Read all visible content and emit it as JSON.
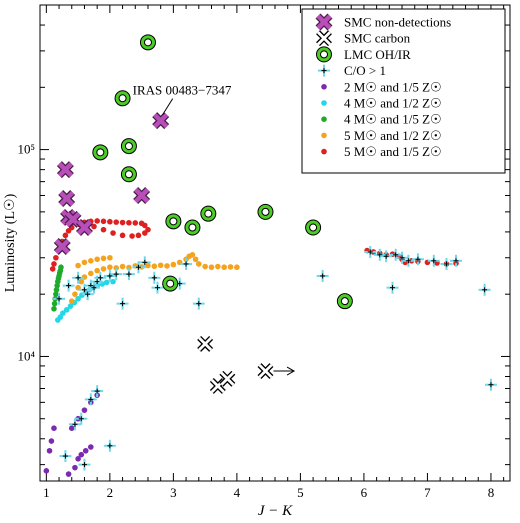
{
  "chart_data": {
    "type": "scatter",
    "xlabel": "J − K",
    "ylabel": "Luminosity (L☉)",
    "xlim": [
      0.9,
      8.3
    ],
    "ylim": [
      2500,
      500000
    ],
    "y_scale": "log",
    "grid": false,
    "legend_position": "top-right",
    "x_ticks": [
      "1",
      "2",
      "3",
      "4",
      "5",
      "6",
      "7",
      "8"
    ],
    "y_ticks": [
      {
        "value": 10000,
        "label": "10⁴"
      },
      {
        "value": 100000,
        "label": "10⁵"
      }
    ],
    "annotation": {
      "text": "IRAS 00483−7347",
      "x": 2.8,
      "y": 138000
    },
    "arrow": {
      "from": [
        4.45,
        8500
      ],
      "to": [
        4.9,
        8500
      ]
    },
    "series": [
      {
        "name": "SMC non-detections",
        "marker": "x-thick",
        "color": "#b84fb8",
        "edge": "#4a1c4a",
        "points": [
          [
            1.3,
            80000
          ],
          [
            1.32,
            58000
          ],
          [
            1.35,
            47000
          ],
          [
            1.42,
            46000
          ],
          [
            1.25,
            34000
          ],
          [
            1.6,
            42000
          ],
          [
            2.5,
            60000
          ],
          [
            2.8,
            138000
          ]
        ]
      },
      {
        "name": "SMC carbon",
        "marker": "x-open",
        "color": "#000000",
        "points": [
          [
            3.5,
            11500
          ],
          [
            3.7,
            7200
          ],
          [
            3.85,
            7800
          ],
          [
            4.45,
            8500
          ]
        ]
      },
      {
        "name": "LMC OH/IR",
        "marker": "target",
        "color": "#4dcc28",
        "points": [
          [
            2.6,
            330000
          ],
          [
            2.2,
            177000
          ],
          [
            2.3,
            104000
          ],
          [
            1.85,
            97000
          ],
          [
            2.3,
            76000
          ],
          [
            3.0,
            45000
          ],
          [
            3.3,
            42000
          ],
          [
            3.55,
            49000
          ],
          [
            4.45,
            50000
          ],
          [
            5.2,
            42000
          ],
          [
            2.95,
            22500
          ],
          [
            5.7,
            18500
          ]
        ]
      },
      {
        "name": "C/O > 1",
        "marker": "plus",
        "color": "#6ed8ea",
        "points": [
          [
            1.2,
            19000
          ],
          [
            1.35,
            22000
          ],
          [
            1.5,
            24000
          ],
          [
            1.6,
            21000
          ],
          [
            1.65,
            20000
          ],
          [
            1.7,
            22000
          ],
          [
            1.75,
            21500
          ],
          [
            1.8,
            23000
          ],
          [
            1.85,
            24000
          ],
          [
            2.0,
            24500
          ],
          [
            2.1,
            25000
          ],
          [
            2.2,
            18000
          ],
          [
            2.3,
            25000
          ],
          [
            2.45,
            27000
          ],
          [
            2.55,
            28500
          ],
          [
            2.7,
            24000
          ],
          [
            2.75,
            21500
          ],
          [
            3.1,
            22500
          ],
          [
            3.2,
            28000
          ],
          [
            3.4,
            18000
          ],
          [
            5.35,
            24500
          ],
          [
            6.45,
            21500
          ],
          [
            7.9,
            21000
          ],
          [
            1.45,
            4700
          ],
          [
            1.55,
            5000
          ],
          [
            1.3,
            3300
          ],
          [
            1.7,
            6200
          ],
          [
            1.8,
            6800
          ],
          [
            2.0,
            3700
          ],
          [
            1.6,
            3000
          ],
          [
            8.0,
            7300
          ],
          [
            6.1,
            32000
          ],
          [
            6.25,
            31000
          ],
          [
            6.35,
            30500
          ],
          [
            6.5,
            31000
          ],
          [
            6.6,
            30000
          ],
          [
            6.7,
            29000
          ],
          [
            6.85,
            29500
          ],
          [
            7.1,
            29000
          ],
          [
            7.3,
            28000
          ],
          [
            7.45,
            29000
          ]
        ]
      },
      {
        "name": "2 M☉ and 1/5 Z☉",
        "marker": "dot",
        "color": "#7a2bb0",
        "points": [
          [
            1.0,
            2800
          ],
          [
            1.05,
            3500
          ],
          [
            1.08,
            3900
          ],
          [
            1.12,
            4500
          ],
          [
            1.35,
            2700
          ],
          [
            1.45,
            2900
          ],
          [
            1.5,
            3200
          ],
          [
            1.55,
            3350
          ],
          [
            1.62,
            3500
          ],
          [
            1.7,
            3650
          ],
          [
            1.4,
            4500
          ],
          [
            1.5,
            5000
          ],
          [
            1.6,
            5500
          ],
          [
            1.7,
            6000
          ],
          [
            1.8,
            6500
          ]
        ]
      },
      {
        "name": "4 M☉ and 1/2 Z☉",
        "marker": "dot",
        "color": "#20d8e8",
        "points": [
          [
            1.18,
            15000
          ],
          [
            1.22,
            15500
          ],
          [
            1.26,
            16200
          ],
          [
            1.32,
            16800
          ],
          [
            1.38,
            17500
          ],
          [
            1.44,
            18200
          ],
          [
            1.5,
            19000
          ],
          [
            1.56,
            19800
          ],
          [
            1.62,
            20500
          ],
          [
            1.68,
            21000
          ],
          [
            1.74,
            21500
          ],
          [
            1.8,
            22000
          ],
          [
            1.88,
            22400
          ],
          [
            1.95,
            22800
          ],
          [
            2.05,
            23000
          ]
        ]
      },
      {
        "name": "4 M☉ and 1/5 Z☉",
        "marker": "dot",
        "color": "#1faa2a",
        "points": [
          [
            1.12,
            17000
          ],
          [
            1.13,
            18000
          ],
          [
            1.14,
            19000
          ],
          [
            1.15,
            20000
          ],
          [
            1.16,
            21000
          ],
          [
            1.17,
            22000
          ],
          [
            1.18,
            23000
          ],
          [
            1.19,
            23800
          ],
          [
            1.2,
            24500
          ],
          [
            1.21,
            25300
          ],
          [
            1.22,
            26000
          ],
          [
            1.23,
            27000
          ]
        ]
      },
      {
        "name": "5 M☉ and 1/2 Z☉",
        "marker": "dot",
        "color": "#f5a21c",
        "points": [
          [
            1.4,
            18500
          ],
          [
            1.45,
            20000
          ],
          [
            1.5,
            21500
          ],
          [
            1.55,
            23000
          ],
          [
            1.6,
            24200
          ],
          [
            1.7,
            25200
          ],
          [
            1.8,
            26000
          ],
          [
            1.9,
            26500
          ],
          [
            2.0,
            27000
          ],
          [
            2.1,
            26800
          ],
          [
            2.2,
            27200
          ],
          [
            2.3,
            26900
          ],
          [
            2.4,
            27400
          ],
          [
            2.5,
            27100
          ],
          [
            2.6,
            27500
          ],
          [
            2.7,
            27300
          ],
          [
            2.8,
            27600
          ],
          [
            2.9,
            27400
          ],
          [
            3.0,
            27800
          ],
          [
            3.1,
            28500
          ],
          [
            3.2,
            29500
          ],
          [
            3.25,
            30500
          ],
          [
            3.3,
            31000
          ],
          [
            3.35,
            29500
          ],
          [
            3.4,
            28000
          ],
          [
            3.5,
            27200
          ],
          [
            3.6,
            27000
          ],
          [
            3.7,
            27200
          ],
          [
            3.8,
            27000
          ],
          [
            3.9,
            27100
          ],
          [
            4.0,
            27000
          ],
          [
            1.5,
            27500
          ],
          [
            1.6,
            28500
          ],
          [
            1.7,
            29000
          ],
          [
            1.8,
            29500
          ],
          [
            1.9,
            29800
          ],
          [
            2.0,
            30000
          ]
        ]
      },
      {
        "name": "5 M☉ and 1/5 Z☉",
        "marker": "dot",
        "color": "#e02020",
        "points": [
          [
            1.15,
            30000
          ],
          [
            1.2,
            33000
          ],
          [
            1.25,
            36000
          ],
          [
            1.3,
            38500
          ],
          [
            1.35,
            40500
          ],
          [
            1.4,
            42000
          ],
          [
            1.5,
            43500
          ],
          [
            1.6,
            44500
          ],
          [
            1.7,
            45000
          ],
          [
            1.8,
            45200
          ],
          [
            1.9,
            45000
          ],
          [
            2.0,
            44800
          ],
          [
            2.1,
            44600
          ],
          [
            2.2,
            44400
          ],
          [
            2.3,
            44300
          ],
          [
            2.4,
            44200
          ],
          [
            2.5,
            44000
          ],
          [
            2.55,
            43000
          ],
          [
            2.6,
            41000
          ],
          [
            2.55,
            39500
          ],
          [
            2.45,
            38500
          ],
          [
            2.35,
            38200
          ],
          [
            2.2,
            38500
          ],
          [
            2.05,
            39500
          ],
          [
            1.9,
            41000
          ],
          [
            1.75,
            42500
          ],
          [
            1.1,
            26500
          ],
          [
            1.12,
            28000
          ],
          [
            6.05,
            32500
          ],
          [
            6.15,
            32000
          ],
          [
            6.25,
            31500
          ],
          [
            6.35,
            31000
          ],
          [
            6.45,
            31200
          ],
          [
            6.55,
            30500
          ],
          [
            6.6,
            29500
          ],
          [
            6.65,
            28500
          ],
          [
            6.75,
            29000
          ],
          [
            6.85,
            28800
          ],
          [
            7.0,
            28500
          ],
          [
            7.15,
            28300
          ],
          [
            7.3,
            28000
          ],
          [
            7.45,
            28200
          ]
        ]
      }
    ]
  }
}
